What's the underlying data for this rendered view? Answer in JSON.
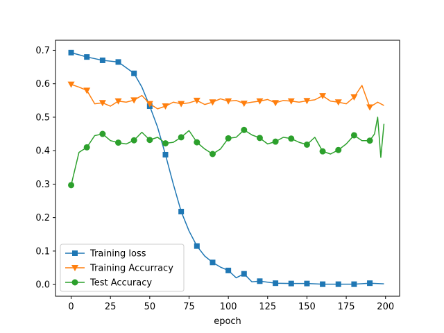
{
  "chart_data": {
    "type": "line",
    "title": "",
    "xlabel": "epoch",
    "ylabel": "",
    "xlim": [
      -9.95,
      208.95
    ],
    "ylim": [
      -0.035,
      0.73
    ],
    "xticks": [
      0,
      25,
      50,
      75,
      100,
      125,
      150,
      175,
      200
    ],
    "yticks": [
      0.0,
      0.1,
      0.2,
      0.3,
      0.4,
      0.5,
      0.6,
      0.7
    ],
    "grid": false,
    "legend_position": "lower-left",
    "series": [
      {
        "name": "Training loss",
        "color": "#1f77b4",
        "marker": "square",
        "x": [
          0,
          10,
          20,
          30,
          40,
          45,
          50,
          55,
          60,
          65,
          70,
          75,
          80,
          85,
          90,
          95,
          100,
          105,
          110,
          115,
          120,
          130,
          140,
          150,
          160,
          170,
          180,
          190,
          199
        ],
        "y": [
          0.693,
          0.68,
          0.67,
          0.665,
          0.631,
          0.59,
          0.533,
          0.47,
          0.388,
          0.3,
          0.218,
          0.16,
          0.115,
          0.085,
          0.066,
          0.052,
          0.042,
          0.02,
          0.032,
          0.008,
          0.01,
          0.004,
          0.003,
          0.003,
          0.001,
          0.001,
          0.001,
          0.004,
          0.002
        ],
        "marker_x": [
          0,
          10,
          20,
          30,
          40,
          50,
          60,
          70,
          80,
          90,
          100,
          110,
          120,
          130,
          140,
          150,
          160,
          170,
          180,
          190
        ],
        "marker_y": [
          0.693,
          0.68,
          0.67,
          0.665,
          0.631,
          0.533,
          0.388,
          0.218,
          0.115,
          0.066,
          0.042,
          0.032,
          0.01,
          0.004,
          0.003,
          0.003,
          0.001,
          0.001,
          0.001,
          0.004
        ]
      },
      {
        "name": "Training Accurracy",
        "color": "#ff7f0e",
        "marker": "triangle-down",
        "x": [
          0,
          5,
          10,
          15,
          20,
          25,
          30,
          35,
          40,
          45,
          50,
          55,
          60,
          65,
          70,
          75,
          80,
          85,
          90,
          95,
          100,
          105,
          110,
          115,
          120,
          125,
          130,
          135,
          140,
          145,
          150,
          155,
          160,
          165,
          170,
          175,
          180,
          185,
          190,
          195,
          199
        ],
        "y": [
          0.598,
          0.59,
          0.58,
          0.54,
          0.543,
          0.533,
          0.548,
          0.545,
          0.551,
          0.565,
          0.54,
          0.525,
          0.533,
          0.545,
          0.54,
          0.543,
          0.55,
          0.538,
          0.545,
          0.555,
          0.548,
          0.55,
          0.541,
          0.545,
          0.548,
          0.553,
          0.543,
          0.55,
          0.548,
          0.545,
          0.549,
          0.552,
          0.564,
          0.548,
          0.545,
          0.54,
          0.56,
          0.595,
          0.53,
          0.545,
          0.535
        ],
        "marker_x": [
          0,
          10,
          20,
          30,
          40,
          50,
          60,
          70,
          80,
          90,
          100,
          110,
          120,
          130,
          140,
          150,
          160,
          170,
          180,
          190
        ],
        "marker_y": [
          0.598,
          0.58,
          0.543,
          0.548,
          0.551,
          0.54,
          0.533,
          0.54,
          0.55,
          0.545,
          0.548,
          0.541,
          0.548,
          0.543,
          0.548,
          0.549,
          0.564,
          0.545,
          0.56,
          0.53
        ]
      },
      {
        "name": "Test Accuracy",
        "color": "#2ca02c",
        "marker": "circle",
        "x": [
          0,
          5,
          10,
          15,
          20,
          25,
          30,
          35,
          40,
          45,
          50,
          55,
          60,
          65,
          70,
          75,
          80,
          85,
          90,
          95,
          100,
          105,
          110,
          115,
          120,
          125,
          130,
          135,
          140,
          145,
          150,
          155,
          160,
          165,
          170,
          175,
          180,
          185,
          190,
          193,
          195,
          197,
          199
        ],
        "y": [
          0.297,
          0.395,
          0.41,
          0.445,
          0.45,
          0.43,
          0.424,
          0.42,
          0.431,
          0.455,
          0.432,
          0.44,
          0.422,
          0.425,
          0.44,
          0.46,
          0.425,
          0.405,
          0.39,
          0.405,
          0.437,
          0.44,
          0.462,
          0.447,
          0.438,
          0.42,
          0.427,
          0.44,
          0.436,
          0.425,
          0.418,
          0.44,
          0.398,
          0.39,
          0.402,
          0.42,
          0.446,
          0.43,
          0.43,
          0.45,
          0.5,
          0.38,
          0.48
        ],
        "marker_x": [
          0,
          10,
          20,
          30,
          40,
          50,
          60,
          70,
          80,
          90,
          100,
          110,
          120,
          130,
          140,
          150,
          160,
          170,
          180,
          190
        ],
        "marker_y": [
          0.297,
          0.41,
          0.45,
          0.424,
          0.431,
          0.432,
          0.422,
          0.44,
          0.425,
          0.39,
          0.437,
          0.462,
          0.438,
          0.427,
          0.436,
          0.418,
          0.398,
          0.402,
          0.446,
          0.43
        ]
      }
    ]
  }
}
